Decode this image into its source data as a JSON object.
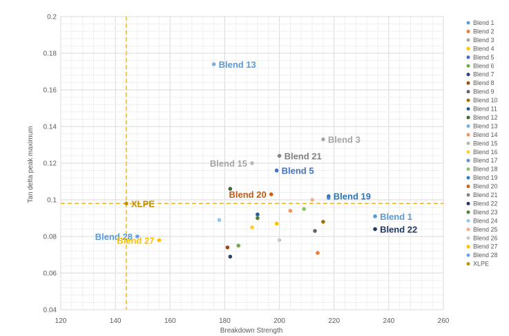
{
  "chart_data": {
    "type": "scatter",
    "title": "",
    "xlabel": "Breakdown Strength",
    "ylabel": "Tan delta peak maximum",
    "xlim": [
      120,
      260
    ],
    "ylim": [
      0.04,
      0.2
    ],
    "x_ticks": [
      "120",
      "140",
      "160",
      "180",
      "200",
      "220",
      "240",
      "260"
    ],
    "y_ticks": [
      "0.04",
      "0.06",
      "0.08",
      "0.1",
      "0.12",
      "0.14",
      "0.16",
      "0.18",
      "0.2"
    ],
    "grid": true,
    "legend_position": "right",
    "series": [
      {
        "name": "Blend 1",
        "color": "#5b9bd5",
        "x": 235,
        "y": 0.091
      },
      {
        "name": "Blend 2",
        "color": "#ed7d31",
        "x": 214,
        "y": 0.071
      },
      {
        "name": "Blend 3",
        "color": "#a5a5a5",
        "x": 216,
        "y": 0.133
      },
      {
        "name": "Blend 4",
        "color": "#ffc000",
        "x": 199,
        "y": 0.087
      },
      {
        "name": "Blend 5",
        "color": "#4472c4",
        "x": 199,
        "y": 0.116
      },
      {
        "name": "Blend 6",
        "color": "#70ad47",
        "x": 185,
        "y": 0.075
      },
      {
        "name": "Blend 7",
        "color": "#264478",
        "x": 182,
        "y": 0.069
      },
      {
        "name": "Blend 8",
        "color": "#9e480e",
        "x": 181,
        "y": 0.074
      },
      {
        "name": "Blend 9",
        "color": "#636363",
        "x": 213,
        "y": 0.083
      },
      {
        "name": "Blend 10",
        "color": "#997300",
        "x": 216,
        "y": 0.088
      },
      {
        "name": "Blend 11",
        "color": "#255e91",
        "x": 192,
        "y": 0.092
      },
      {
        "name": "Blend 12",
        "color": "#43682b",
        "x": 182,
        "y": 0.106
      },
      {
        "name": "Blend 13",
        "color": "#7cafdd",
        "x": 176,
        "y": 0.174
      },
      {
        "name": "Blend 14",
        "color": "#f1975a",
        "x": 204,
        "y": 0.094
      },
      {
        "name": "Blend 15",
        "color": "#b7b7b7",
        "x": 190,
        "y": 0.12
      },
      {
        "name": "Blend 16",
        "color": "#ffcd33",
        "x": 190,
        "y": 0.085
      },
      {
        "name": "Blend 17",
        "color": "#698ed0",
        "x": 218,
        "y": 0.101
      },
      {
        "name": "Blend 18",
        "color": "#8cc168",
        "x": 209,
        "y": 0.095
      },
      {
        "name": "Blend 19",
        "color": "#327dc2",
        "x": 218,
        "y": 0.102
      },
      {
        "name": "Blend 20",
        "color": "#d26012",
        "x": 197,
        "y": 0.103
      },
      {
        "name": "Blend 21",
        "color": "#848484",
        "x": 200,
        "y": 0.124
      },
      {
        "name": "Blend 22",
        "color": "#203864",
        "x": 235,
        "y": 0.084
      },
      {
        "name": "Blend 23",
        "color": "#548235",
        "x": 192,
        "y": 0.09
      },
      {
        "name": "Blend 24",
        "color": "#97c4eb",
        "x": 178,
        "y": 0.089
      },
      {
        "name": "Blend 25",
        "color": "#f4b183",
        "x": 212,
        "y": 0.1
      },
      {
        "name": "Blend 26",
        "color": "#c9c9c9",
        "x": 200,
        "y": 0.078
      },
      {
        "name": "Blend 27",
        "color": "#ffc000",
        "x": 156,
        "y": 0.078
      },
      {
        "name": "Blend 28",
        "color": "#6d9eeb",
        "x": 148,
        "y": 0.08
      },
      {
        "name": "XLPE",
        "color": "#c09000",
        "x": 144,
        "y": 0.098
      }
    ],
    "reference_lines": {
      "x": 144,
      "y": 0.098,
      "color": "#f0b323"
    },
    "annotations": [
      {
        "text": "Blend 13",
        "series": "Blend 13",
        "color": "#5b9bd5",
        "anchor": "start"
      },
      {
        "text": "Blend 3",
        "series": "Blend 3",
        "color": "#a5a5a5",
        "anchor": "start"
      },
      {
        "text": "Blend 15",
        "series": "Blend 15",
        "color": "#a5a5a5",
        "anchor": "end"
      },
      {
        "text": "Blend 21",
        "series": "Blend 21",
        "color": "#7f7f7f",
        "anchor": "start"
      },
      {
        "text": "Blend 5",
        "series": "Blend 5",
        "color": "#4472c4",
        "anchor": "start"
      },
      {
        "text": "Blend 19",
        "series": "Blend 19",
        "color": "#2e75b6",
        "anchor": "start"
      },
      {
        "text": "Blend 20",
        "series": "Blend 20",
        "color": "#c55a11",
        "anchor": "end"
      },
      {
        "text": "XLPE",
        "series": "XLPE",
        "color": "#bf8f00",
        "anchor": "start"
      },
      {
        "text": "Blend 1",
        "series": "Blend 1",
        "color": "#5b9bd5",
        "anchor": "start"
      },
      {
        "text": "Blend 22",
        "series": "Blend 22",
        "color": "#1f3864",
        "anchor": "start"
      },
      {
        "text": "Blend 28",
        "series": "Blend 28",
        "color": "#5b9bd5",
        "anchor": "end"
      },
      {
        "text": "Blend 27",
        "series": "Blend 27",
        "color": "#ffc000",
        "anchor": "end"
      }
    ]
  }
}
